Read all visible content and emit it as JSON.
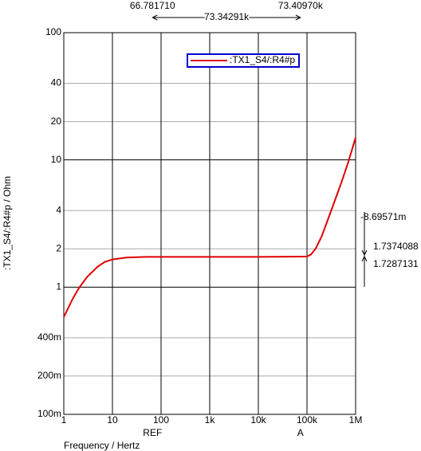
{
  "chart_data": {
    "type": "line",
    "log_x": true,
    "log_y": true,
    "grid": true,
    "x_label": "Frequency / Hertz",
    "y_label": ":TX1_S4/:R4#p / Ohm",
    "xlim": [
      1,
      1000000
    ],
    "ylim": [
      0.1,
      100
    ],
    "xticks": [
      1,
      10,
      100,
      {
        "value": 1000,
        "label": "1k"
      },
      {
        "value": 10000,
        "label": "10k"
      },
      {
        "value": 100000,
        "label": "100k"
      },
      {
        "value": 1000000,
        "label": "1M"
      }
    ],
    "yticks": [
      {
        "value": 0.1,
        "label": "100m"
      },
      {
        "value": 0.2,
        "label": "200m"
      },
      {
        "value": 0.4,
        "label": "400m"
      },
      1,
      2,
      4,
      10,
      20,
      40,
      100
    ],
    "x": [
      1,
      1.5,
      2,
      3,
      5,
      7,
      10,
      20,
      50,
      100,
      1000,
      10000,
      100000,
      120000,
      150000,
      200000,
      300000,
      500000,
      700000,
      1000000
    ],
    "series": [
      {
        "name": ":TX1_S4/:R4#p",
        "color": "#e00000",
        "values": [
          0.58,
          0.8,
          0.97,
          1.2,
          1.45,
          1.58,
          1.65,
          1.71,
          1.73,
          1.73,
          1.73,
          1.73,
          1.74,
          1.8,
          2.0,
          2.5,
          3.8,
          6.5,
          9.5,
          15
        ]
      }
    ],
    "legend": "top-right",
    "cursors": [
      {
        "name": "REF",
        "x": {
          "value": 66.78171,
          "label": "66.781710"
        }
      },
      {
        "name": "A",
        "x": {
          "value": 73409.7,
          "label": "73.40970k"
        }
      }
    ],
    "cursor_delta_x": {
      "value": 73342.91,
      "label": "73.34291k"
    },
    "cursor_values": [
      {
        "value": 1.7374088,
        "label": "1.7374088"
      },
      {
        "value": 1.7287131,
        "label": "1.7287131"
      }
    ],
    "cursor_delta_y": {
      "value": -0.00869571,
      "label": "-8.69571m"
    }
  }
}
